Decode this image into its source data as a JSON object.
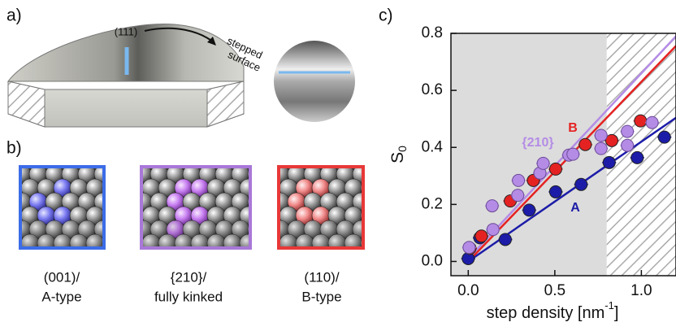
{
  "panels": {
    "a": {
      "label": "a)",
      "facet": "(111)",
      "stepped_1": "stepped",
      "stepped_2": "surface"
    },
    "b": {
      "label": "b)",
      "tiles": [
        {
          "line1": "(001)/",
          "line2": "A-type"
        },
        {
          "line1": "{210}/",
          "line2": "fully kinked"
        },
        {
          "line1": "(110)/",
          "line2": "B-type"
        }
      ]
    },
    "c": {
      "label": "c)"
    }
  },
  "chart_data": {
    "type": "scatter",
    "xlabel": {
      "text": "step density [nm",
      "sup": "-1",
      "end": "]"
    },
    "ylabel": {
      "text": "S",
      "sub": "0"
    },
    "xlim": [
      -0.1,
      1.2
    ],
    "ylim": [
      -0.05,
      0.8
    ],
    "xticks": [
      {
        "value": 0,
        "label": "0.0"
      },
      0.5,
      {
        "value": 1,
        "label": "1.0"
      }
    ],
    "yticks": [
      {
        "value": 0,
        "label": "0.0"
      },
      0.2,
      0.4,
      0.6,
      0.8
    ],
    "shade_until": 0.8,
    "series": [
      {
        "name": "A",
        "color": "#1c1ca8",
        "xerr": 0.04,
        "x": [
          0.0,
          0.067,
          0.214,
          0.352,
          0.505,
          0.652,
          0.814,
          0.976,
          1.133
        ],
        "values": [
          0.01,
          0.083,
          0.077,
          0.18,
          0.244,
          0.27,
          0.347,
          0.364,
          0.436
        ],
        "fit": {
          "slope": 0.42,
          "intercept": 0.0
        }
      },
      {
        "name": "B",
        "color": "#e52222",
        "xerr": 0.04,
        "x": [
          0.01,
          0.076,
          0.243,
          0.376,
          0.505,
          0.676,
          0.829,
          0.995
        ],
        "values": [
          0.046,
          0.089,
          0.212,
          0.284,
          0.324,
          0.41,
          0.424,
          0.493
        ],
        "fit": {
          "slope": 0.63,
          "intercept": 0.0
        }
      },
      {
        "name": "{210}",
        "color": "#b48ce6",
        "xerr": 0.04,
        "x": [
          0.005,
          0.143,
          0.138,
          0.286,
          0.29,
          0.414,
          0.433,
          0.581,
          0.605,
          0.767,
          0.767,
          0.919,
          0.919,
          1.062
        ],
        "values": [
          0.049,
          0.112,
          0.195,
          0.232,
          0.284,
          0.31,
          0.344,
          0.373,
          0.376,
          0.396,
          0.442,
          0.456,
          0.407,
          0.487
        ],
        "fit": {
          "slope": 0.65,
          "intercept": 0.01
        }
      }
    ]
  }
}
